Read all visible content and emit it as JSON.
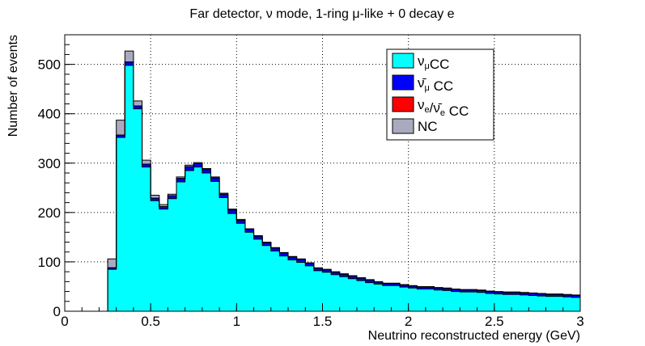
{
  "chart_data": {
    "type": "bar",
    "stacked": true,
    "histogram": true,
    "title": "Far detector, ν mode, 1-ring μ-like + 0 decay e",
    "xlabel": "Neutrino reconstructed energy (GeV)",
    "ylabel": "Number of events",
    "xlim": [
      0,
      3
    ],
    "ylim": [
      0,
      560
    ],
    "bin_width": 0.05,
    "x_start": 0.25,
    "x_ticks": [
      {
        "value": 0,
        "label": "0"
      },
      {
        "value": 0.5,
        "label": "0.5"
      },
      {
        "value": 1,
        "label": "1"
      },
      {
        "value": 1.5,
        "label": "1.5"
      },
      {
        "value": 2,
        "label": "2"
      },
      {
        "value": 2.5,
        "label": "2.5"
      },
      {
        "value": 3,
        "label": "3"
      }
    ],
    "y_ticks": [
      {
        "value": 0,
        "label": "0"
      },
      {
        "value": 100,
        "label": "100"
      },
      {
        "value": 200,
        "label": "200"
      },
      {
        "value": 300,
        "label": "300"
      },
      {
        "value": 400,
        "label": "400"
      },
      {
        "value": 500,
        "label": "500"
      }
    ],
    "grid": true,
    "legend_position": "top-right",
    "series": [
      {
        "key": "numu",
        "legend_main": "ν",
        "legend_sub": "μ",
        "legend_tail": "CC",
        "color": "#00ffff",
        "values": [
          85,
          352,
          498,
          410,
          292,
          224,
          207,
          228,
          262,
          285,
          292,
          280,
          263,
          230,
          198,
          178,
          160,
          146,
          133,
          122,
          112,
          104,
          99,
          92,
          82,
          79,
          74,
          70,
          66,
          62,
          58,
          55,
          52,
          52,
          49,
          47,
          45,
          45,
          43,
          42,
          40,
          39,
          39,
          38,
          36,
          35,
          34,
          34,
          33,
          32,
          31,
          30,
          30,
          29,
          28
        ]
      },
      {
        "key": "numubar",
        "legend_main": "ν̄",
        "legend_sub": "μ",
        "legend_tail": " CC",
        "color": "#0000ff",
        "values": [
          3,
          5,
          7,
          6,
          6,
          5,
          5,
          6,
          7,
          8,
          7,
          7,
          7,
          7,
          7,
          6,
          6,
          6,
          6,
          6,
          6,
          6,
          6,
          5,
          5,
          5,
          5,
          5,
          5,
          5,
          5,
          4,
          4,
          4,
          4,
          4,
          4,
          4,
          4,
          4,
          4,
          4,
          4,
          4,
          4,
          4,
          4,
          4,
          4,
          4,
          4,
          4,
          4,
          4,
          4
        ]
      },
      {
        "key": "nue",
        "legend_main": "ν",
        "legend_sub": "e",
        "legend_mid": "/ν̄",
        "legend_sub2": "e",
        "legend_tail": " CC",
        "color": "#ff0000",
        "values": [
          0,
          0,
          0,
          0,
          0,
          0,
          0,
          0,
          0,
          0,
          0,
          0,
          0,
          0,
          0,
          0,
          0,
          0,
          0,
          0,
          0,
          0,
          0,
          0,
          0,
          0,
          0,
          0,
          0,
          0,
          0,
          0,
          0,
          0,
          0,
          0,
          0,
          0,
          0,
          0,
          0,
          0,
          0,
          0,
          0,
          0,
          0,
          0,
          0,
          0,
          0,
          0,
          0,
          0,
          0
        ]
      },
      {
        "key": "nc",
        "legend_main": "NC",
        "color": "#aaaabf",
        "values": [
          18,
          30,
          22,
          10,
          8,
          6,
          4,
          3,
          3,
          3,
          2,
          2,
          2,
          2,
          2,
          2,
          1,
          1,
          1,
          1,
          1,
          1,
          1,
          1,
          1,
          1,
          1,
          1,
          1,
          1,
          1,
          1,
          1,
          1,
          1,
          1,
          1,
          1,
          1,
          1,
          1,
          1,
          1,
          1,
          1,
          1,
          1,
          1,
          1,
          1,
          1,
          1,
          1,
          1,
          1
        ]
      }
    ]
  }
}
